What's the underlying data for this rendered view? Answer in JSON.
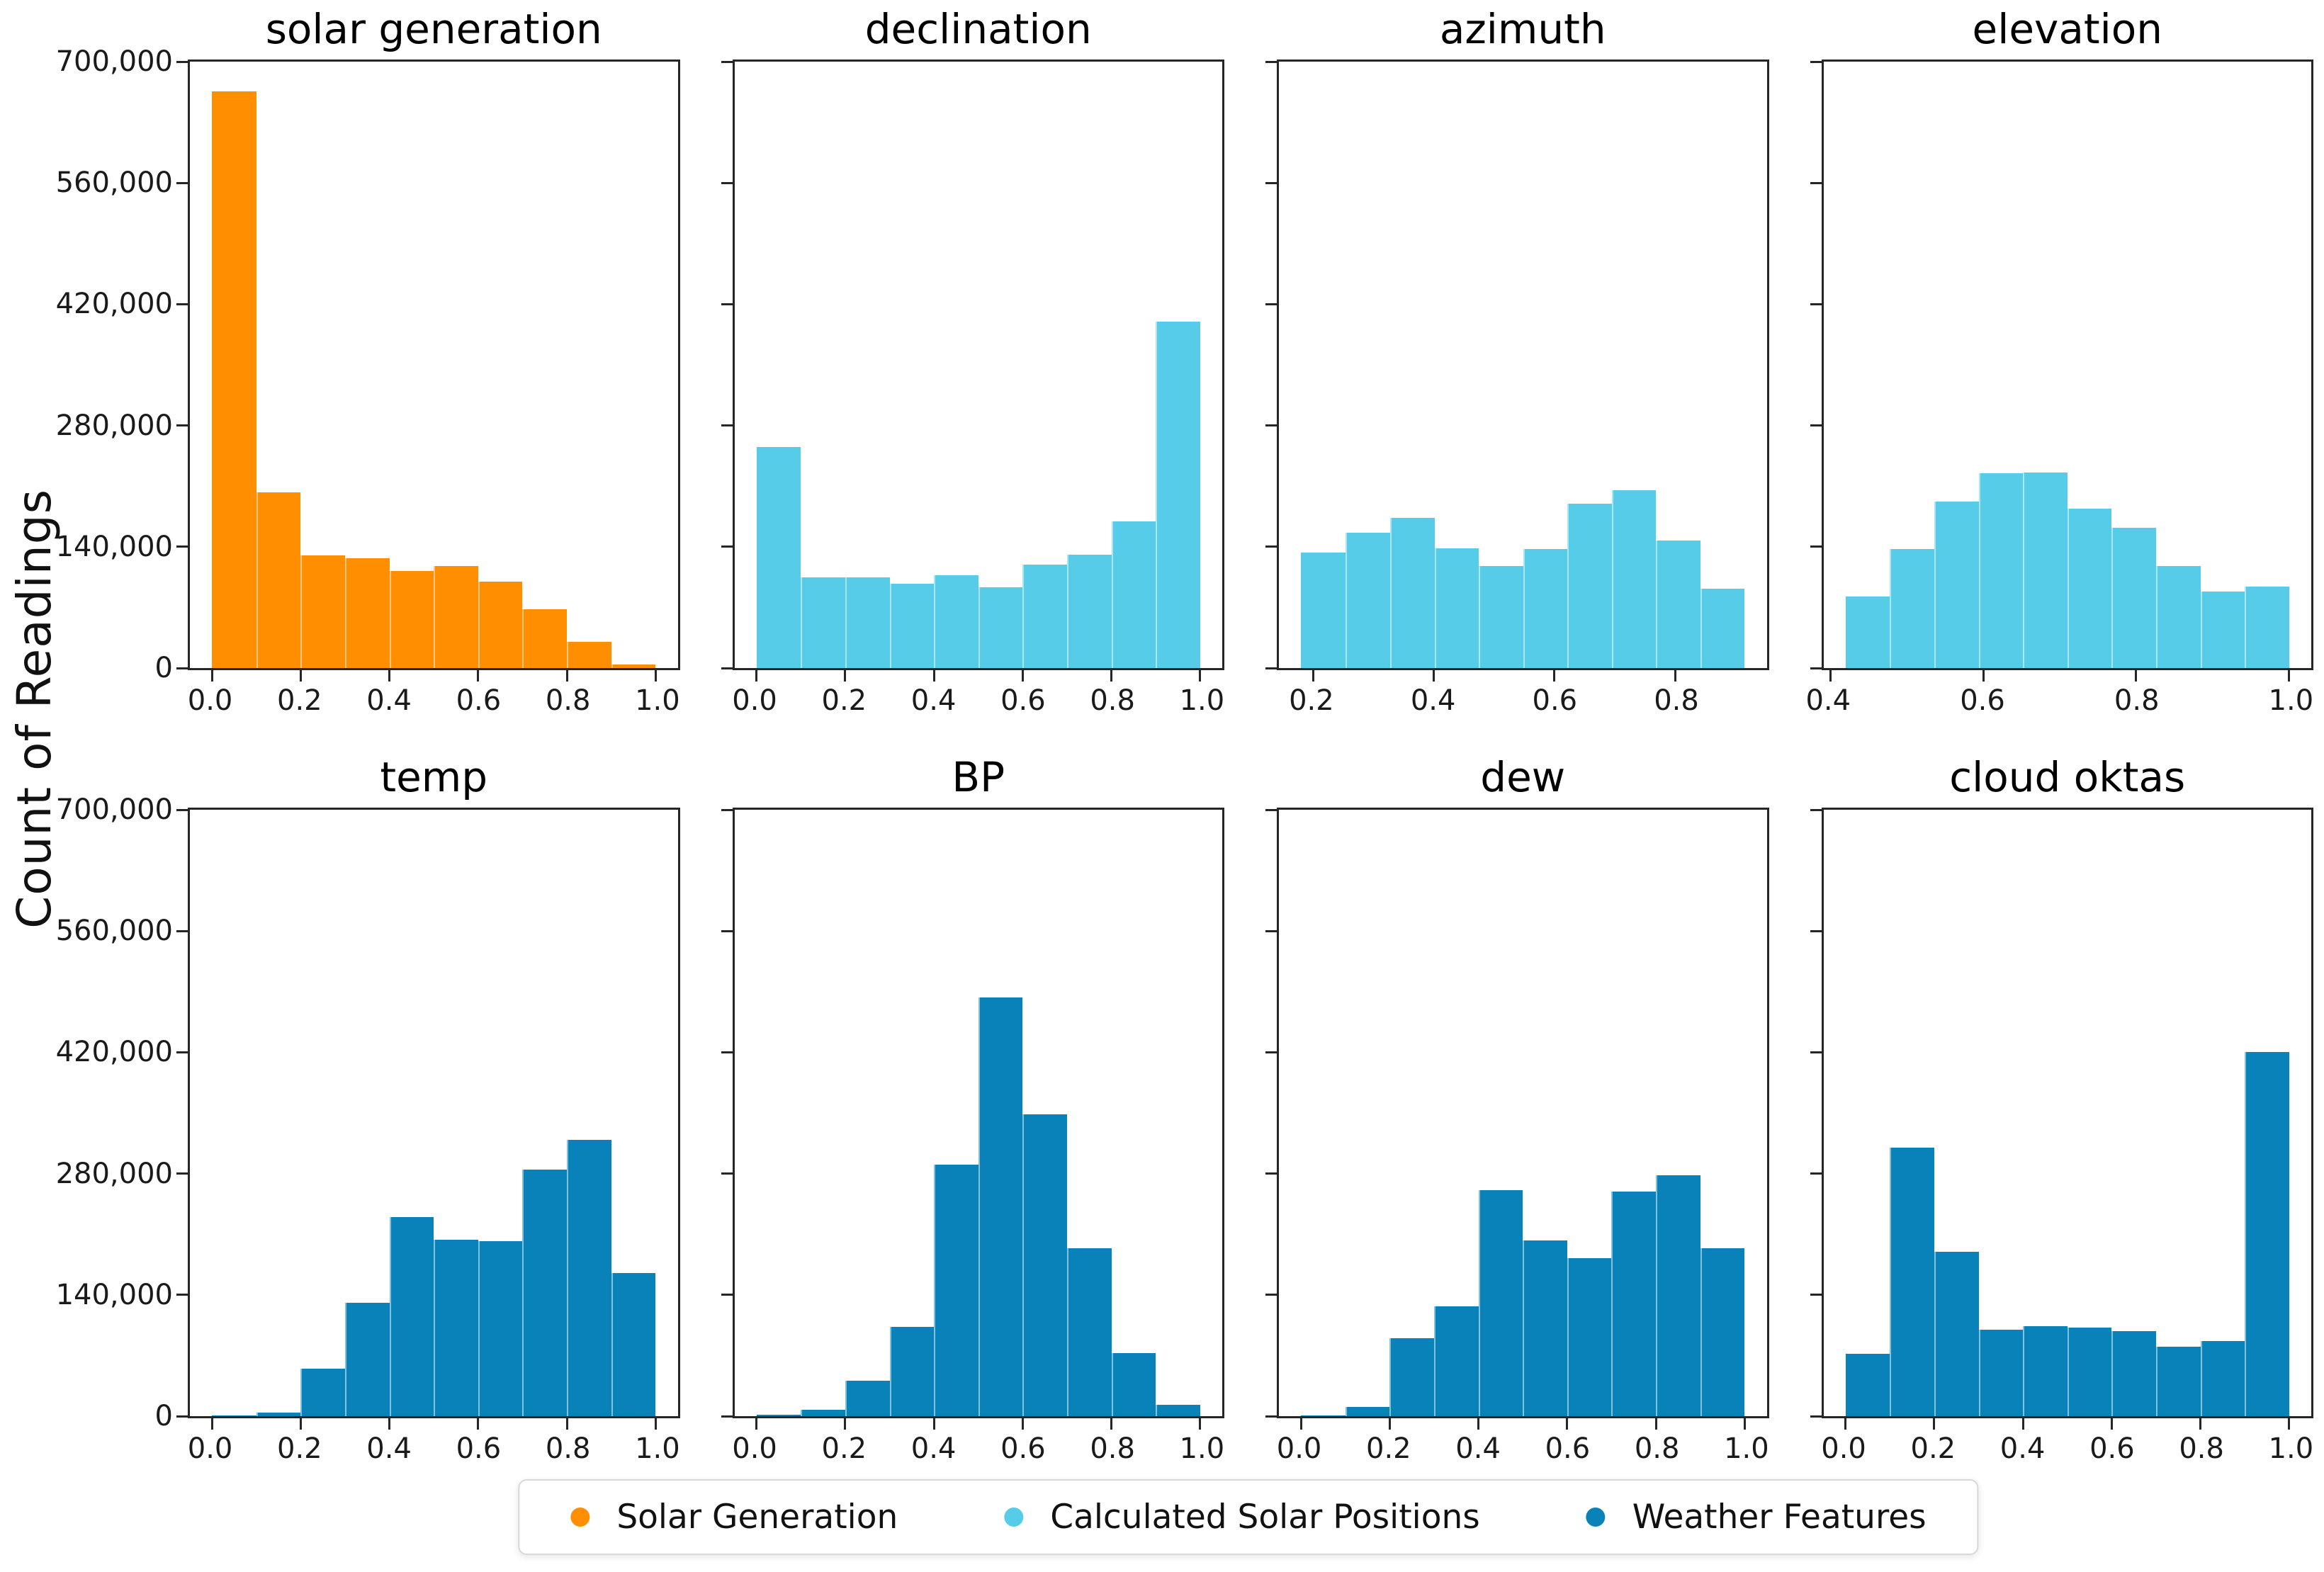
{
  "figure": {
    "ylabel": "Count of Readings",
    "background": "#ffffff",
    "axis_color": "#262626",
    "y_axis": {
      "min": 0,
      "max": 700000,
      "ticks": [
        0,
        140000,
        280000,
        420000,
        560000,
        700000
      ],
      "tick_labels": [
        "0",
        "140,000",
        "280,000",
        "420,000",
        "560,000",
        "700,000"
      ]
    },
    "legend": [
      {
        "label": "Solar Generation",
        "color": "#ff8f00"
      },
      {
        "label": "Calculated Solar Positions",
        "color": "#56cce8"
      },
      {
        "label": "Weather Features",
        "color": "#0982ba"
      }
    ],
    "layout": {
      "rows": 2,
      "cols": 4,
      "legend_position": "bottom-center",
      "grid": false
    }
  },
  "chart_data": [
    {
      "type": "histogram",
      "title": "solar generation",
      "series": "Solar Generation",
      "color": "#ff8f00",
      "show_y_tick_labels": true,
      "xlim": [
        -0.05,
        1.05
      ],
      "ylim": [
        0,
        700000
      ],
      "bin_edges": [
        0.0,
        0.1,
        0.2,
        0.3,
        0.4,
        0.5,
        0.6,
        0.7,
        0.8,
        0.9,
        1.0
      ],
      "counts": [
        666000,
        203000,
        130000,
        127000,
        112000,
        118000,
        100000,
        68000,
        30000,
        4000
      ],
      "x_ticks": [
        {
          "v": 0.0,
          "label": "0.0"
        },
        {
          "v": 0.2,
          "label": "0.2"
        },
        {
          "v": 0.4,
          "label": "0.4"
        },
        {
          "v": 0.6,
          "label": "0.6"
        },
        {
          "v": 0.8,
          "label": "0.8"
        },
        {
          "v": 1.0,
          "label": "1.0"
        }
      ]
    },
    {
      "type": "histogram",
      "title": "declination",
      "series": "Calculated Solar Positions",
      "color": "#56cce8",
      "show_y_tick_labels": false,
      "xlim": [
        -0.05,
        1.05
      ],
      "ylim": [
        0,
        700000
      ],
      "bin_edges": [
        0.0,
        0.1,
        0.2,
        0.3,
        0.4,
        0.5,
        0.6,
        0.7,
        0.8,
        0.9,
        1.0
      ],
      "counts": [
        255000,
        105000,
        105000,
        97000,
        107000,
        93000,
        119000,
        131000,
        169000,
        400000
      ],
      "x_ticks": [
        {
          "v": 0.0,
          "label": "0.0"
        },
        {
          "v": 0.2,
          "label": "0.2"
        },
        {
          "v": 0.4,
          "label": "0.4"
        },
        {
          "v": 0.6,
          "label": "0.6"
        },
        {
          "v": 0.8,
          "label": "0.8"
        },
        {
          "v": 1.0,
          "label": "1.0"
        }
      ]
    },
    {
      "type": "histogram",
      "title": "azimuth",
      "series": "Calculated Solar Positions",
      "color": "#56cce8",
      "show_y_tick_labels": false,
      "xlim": [
        0.143,
        0.952
      ],
      "ylim": [
        0,
        700000
      ],
      "bin_edges": [
        0.18,
        0.254,
        0.327,
        0.401,
        0.474,
        0.548,
        0.621,
        0.695,
        0.768,
        0.842,
        0.915
      ],
      "counts": [
        133000,
        156000,
        173000,
        138000,
        118000,
        137000,
        190000,
        205000,
        147000,
        92000
      ],
      "x_ticks": [
        {
          "v": 0.2,
          "label": "0.2"
        },
        {
          "v": 0.4,
          "label": "0.4"
        },
        {
          "v": 0.6,
          "label": "0.6"
        },
        {
          "v": 0.8,
          "label": "0.8"
        }
      ]
    },
    {
      "type": "histogram",
      "title": "elevation",
      "series": "Calculated Solar Positions",
      "color": "#56cce8",
      "show_y_tick_labels": false,
      "xlim": [
        0.391,
        1.029
      ],
      "ylim": [
        0,
        700000
      ],
      "bin_edges": [
        0.42,
        0.478,
        0.536,
        0.594,
        0.652,
        0.71,
        0.768,
        0.826,
        0.884,
        0.942,
        1.0
      ],
      "counts": [
        83000,
        137000,
        192000,
        225000,
        226000,
        184000,
        162000,
        118000,
        88000,
        94000
      ],
      "x_ticks": [
        {
          "v": 0.4,
          "label": "0.4"
        },
        {
          "v": 0.6,
          "label": "0.6"
        },
        {
          "v": 0.8,
          "label": "0.8"
        },
        {
          "v": 1.0,
          "label": "1.0"
        }
      ]
    },
    {
      "type": "histogram",
      "title": "temp",
      "series": "Weather Features",
      "color": "#0982ba",
      "show_y_tick_labels": true,
      "xlim": [
        -0.05,
        1.05
      ],
      "ylim": [
        0,
        700000
      ],
      "bin_edges": [
        0.0,
        0.1,
        0.2,
        0.3,
        0.4,
        0.5,
        0.6,
        0.7,
        0.8,
        0.9,
        1.0
      ],
      "counts": [
        1000,
        4000,
        55000,
        131000,
        230000,
        204000,
        202000,
        285000,
        319000,
        165000
      ],
      "x_ticks": [
        {
          "v": 0.0,
          "label": "0.0"
        },
        {
          "v": 0.2,
          "label": "0.2"
        },
        {
          "v": 0.4,
          "label": "0.4"
        },
        {
          "v": 0.6,
          "label": "0.6"
        },
        {
          "v": 0.8,
          "label": "0.8"
        },
        {
          "v": 1.0,
          "label": "1.0"
        }
      ]
    },
    {
      "type": "histogram",
      "title": "BP",
      "series": "Weather Features",
      "color": "#0982ba",
      "show_y_tick_labels": false,
      "xlim": [
        -0.05,
        1.05
      ],
      "ylim": [
        0,
        700000
      ],
      "bin_edges": [
        0.0,
        0.1,
        0.2,
        0.3,
        0.4,
        0.5,
        0.6,
        0.7,
        0.8,
        0.9,
        1.0
      ],
      "counts": [
        2000,
        7000,
        41000,
        103000,
        290000,
        483000,
        348000,
        194000,
        73000,
        13000
      ],
      "x_ticks": [
        {
          "v": 0.0,
          "label": "0.0"
        },
        {
          "v": 0.2,
          "label": "0.2"
        },
        {
          "v": 0.4,
          "label": "0.4"
        },
        {
          "v": 0.6,
          "label": "0.6"
        },
        {
          "v": 0.8,
          "label": "0.8"
        },
        {
          "v": 1.0,
          "label": "1.0"
        }
      ]
    },
    {
      "type": "histogram",
      "title": "dew",
      "series": "Weather Features",
      "color": "#0982ba",
      "show_y_tick_labels": false,
      "xlim": [
        -0.05,
        1.05
      ],
      "ylim": [
        0,
        700000
      ],
      "bin_edges": [
        0.0,
        0.1,
        0.2,
        0.3,
        0.4,
        0.5,
        0.6,
        0.7,
        0.8,
        0.9,
        1.0
      ],
      "counts": [
        1000,
        11000,
        90000,
        127000,
        261000,
        203000,
        182000,
        259000,
        278000,
        194000
      ],
      "x_ticks": [
        {
          "v": 0.0,
          "label": "0.0"
        },
        {
          "v": 0.2,
          "label": "0.2"
        },
        {
          "v": 0.4,
          "label": "0.4"
        },
        {
          "v": 0.6,
          "label": "0.6"
        },
        {
          "v": 0.8,
          "label": "0.8"
        },
        {
          "v": 1.0,
          "label": "1.0"
        }
      ]
    },
    {
      "type": "histogram",
      "title": "cloud oktas",
      "series": "Weather Features",
      "color": "#0982ba",
      "show_y_tick_labels": false,
      "xlim": [
        -0.05,
        1.05
      ],
      "ylim": [
        0,
        700000
      ],
      "bin_edges": [
        0.0,
        0.1,
        0.2,
        0.3,
        0.4,
        0.5,
        0.6,
        0.7,
        0.8,
        0.9,
        1.0
      ],
      "counts": [
        72000,
        310000,
        190000,
        100000,
        104000,
        102000,
        98000,
        80000,
        87000,
        420000
      ],
      "x_ticks": [
        {
          "v": 0.0,
          "label": "0.0"
        },
        {
          "v": 0.2,
          "label": "0.2"
        },
        {
          "v": 0.4,
          "label": "0.4"
        },
        {
          "v": 0.6,
          "label": "0.6"
        },
        {
          "v": 0.8,
          "label": "0.8"
        },
        {
          "v": 1.0,
          "label": "1.0"
        }
      ]
    }
  ]
}
